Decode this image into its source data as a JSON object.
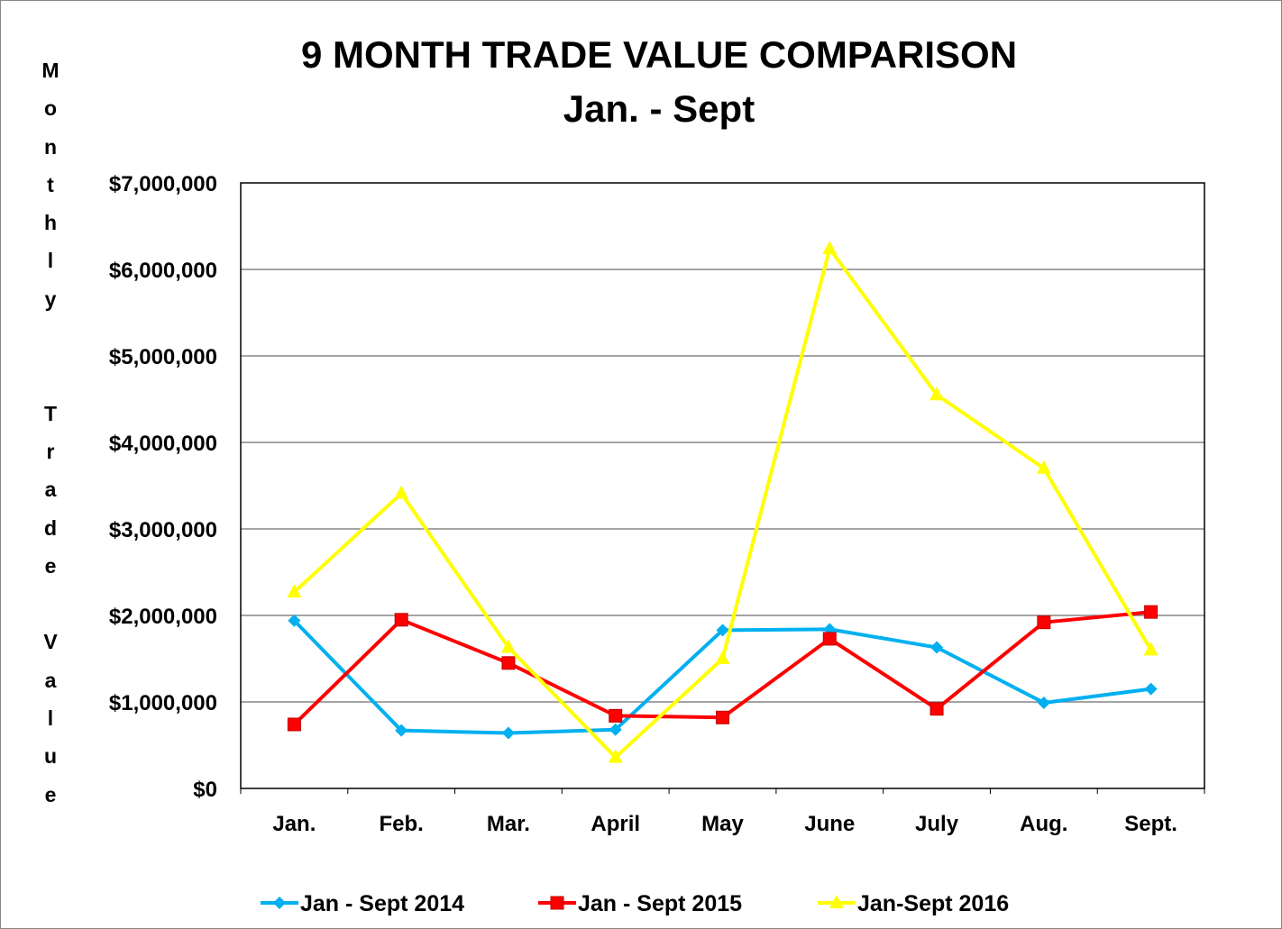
{
  "chart_data": {
    "type": "line",
    "title": "9 MONTH TRADE VALUE COMPARISON",
    "subtitle": "Jan.  - Sept",
    "ylabel": "Monthly  Trade Value",
    "xlabel": "",
    "categories": [
      "Jan.",
      "Feb.",
      "Mar.",
      "April",
      "May",
      "June",
      "July",
      "Aug.",
      "Sept."
    ],
    "ylim": [
      0,
      7000000
    ],
    "yticks": [
      0,
      1000000,
      2000000,
      3000000,
      4000000,
      5000000,
      6000000,
      7000000
    ],
    "ytick_labels": [
      "$0",
      "$1,000,000",
      "$2,000,000",
      "$3,000,000",
      "$4,000,000",
      "$5,000,000",
      "$6,000,000",
      "$7,000,000"
    ],
    "grid": true,
    "legend_position": "bottom",
    "series": [
      {
        "name": "Jan - Sept 2014",
        "color": "#00B0F0",
        "marker": "diamond",
        "values": [
          1940000,
          670000,
          640000,
          680000,
          1830000,
          1840000,
          1630000,
          990000,
          1150000
        ]
      },
      {
        "name": "Jan - Sept 2015",
        "color": "#FF0000",
        "marker": "square",
        "values": [
          740000,
          1950000,
          1450000,
          840000,
          820000,
          1730000,
          920000,
          1920000,
          2040000
        ]
      },
      {
        "name": "Jan-Sept 2016",
        "color": "#FFFF00",
        "marker": "triangle",
        "values": [
          2270000,
          3410000,
          1630000,
          360000,
          1500000,
          6240000,
          4550000,
          3700000,
          1600000
        ]
      }
    ]
  }
}
